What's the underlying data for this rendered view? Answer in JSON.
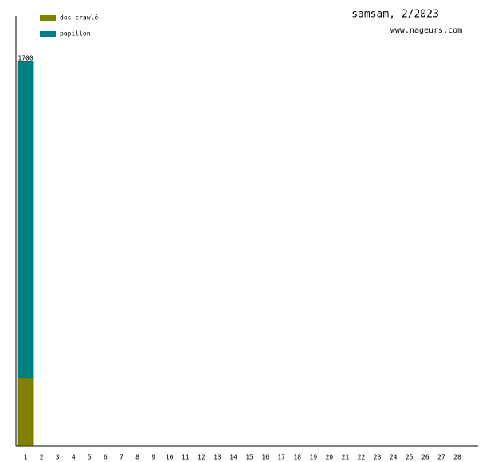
{
  "chart_data": {
    "type": "stacked-bar",
    "title": "samsam, 2/2023",
    "subtitle": "www.nageurs.com",
    "categories": [
      "1",
      "2",
      "3",
      "4",
      "5",
      "6",
      "7",
      "8",
      "9",
      "10",
      "11",
      "12",
      "13",
      "14",
      "15",
      "16",
      "17",
      "18",
      "19",
      "20",
      "21",
      "22",
      "23",
      "24",
      "25",
      "26",
      "27",
      "28"
    ],
    "series": [
      {
        "name": "dos crawlé",
        "color": "#808000",
        "values": [
          300,
          0,
          0,
          0,
          0,
          0,
          0,
          0,
          0,
          0,
          0,
          0,
          0,
          0,
          0,
          0,
          0,
          0,
          0,
          0,
          0,
          0,
          0,
          0,
          0,
          0,
          0,
          0
        ]
      },
      {
        "name": "papillon",
        "color": "#008080",
        "values": [
          1400,
          0,
          0,
          0,
          0,
          0,
          0,
          0,
          0,
          0,
          0,
          0,
          0,
          0,
          0,
          0,
          0,
          0,
          0,
          0,
          0,
          0,
          0,
          0,
          0,
          0,
          0,
          0
        ]
      }
    ],
    "totals": [
      1700,
      null,
      null,
      null,
      null,
      null,
      null,
      null,
      null,
      null,
      null,
      null,
      null,
      null,
      null,
      null,
      null,
      null,
      null,
      null,
      null,
      null,
      null,
      null,
      null,
      null,
      null,
      null
    ],
    "ylim": [
      0,
      1900
    ]
  }
}
